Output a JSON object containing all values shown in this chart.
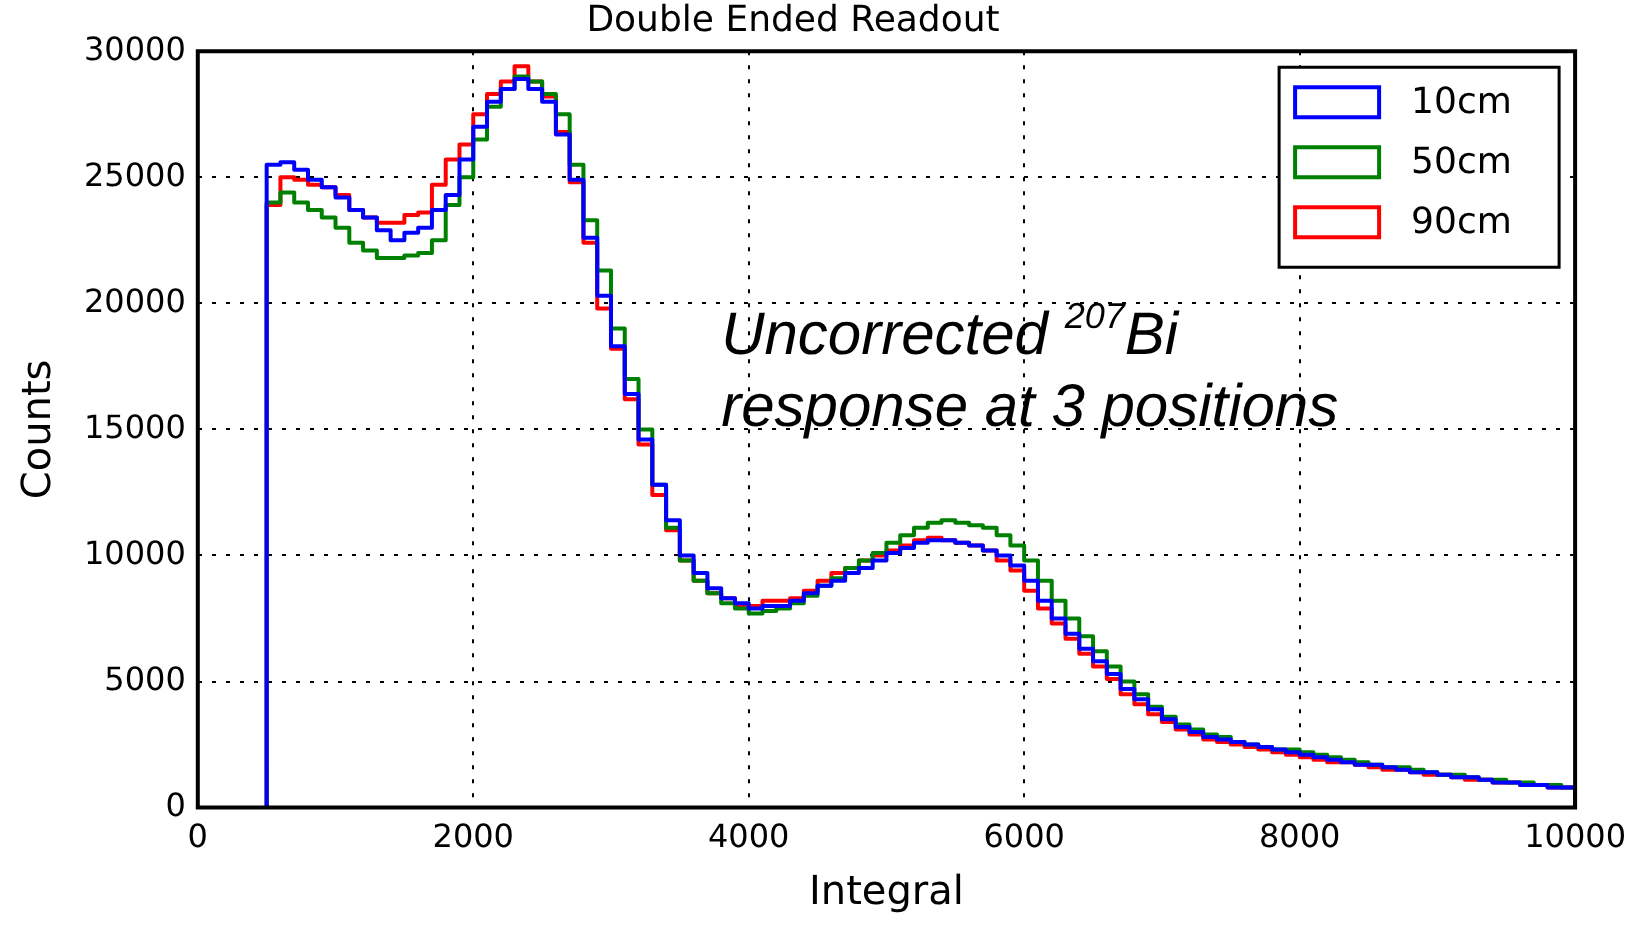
{
  "chart_data": {
    "type": "histogram",
    "title": "Double Ended Readout",
    "xlabel": "Integral",
    "ylabel": "Counts",
    "annotations": [
      "Uncorrected $^{207}$Bi\nresponse at 3 positions"
    ],
    "bins": [
      500,
      600,
      700,
      800,
      900,
      1000,
      1100,
      1200,
      1300,
      1400,
      1500,
      1600,
      1700,
      1800,
      1900,
      2000,
      2100,
      2200,
      2300,
      2400,
      2500,
      2600,
      2700,
      2800,
      2900,
      3000,
      3100,
      3200,
      3300,
      3400,
      3500,
      3600,
      3700,
      3800,
      3900,
      4000,
      4100,
      4200,
      4300,
      4400,
      4500,
      4600,
      4700,
      4800,
      4900,
      5000,
      5100,
      5200,
      5300,
      5400,
      5500,
      5600,
      5700,
      5800,
      5900,
      6000,
      6100,
      6200,
      6300,
      6400,
      6500,
      6600,
      6700,
      6800,
      6900,
      7000,
      7100,
      7200,
      7300,
      7400,
      7500,
      7600,
      7700,
      7800,
      7900,
      8000,
      8100,
      8200,
      8300,
      8400,
      8500,
      8600,
      8700,
      8800,
      8900,
      9000,
      9100,
      9200,
      9300,
      9400,
      9500,
      9600,
      9700,
      9800,
      9900,
      10000
    ],
    "series": [
      {
        "name": "10cm",
        "color": "#0000ff",
        "values": [
          25500,
          25600,
          25300,
          24900,
          24600,
          24200,
          23700,
          23400,
          22900,
          22500,
          22800,
          23000,
          23700,
          24300,
          25700,
          27000,
          28000,
          28500,
          28900,
          28500,
          28000,
          26700,
          24900,
          22600,
          20300,
          18300,
          16400,
          14600,
          12800,
          11400,
          10000,
          9300,
          8700,
          8300,
          8100,
          7900,
          8000,
          8000,
          8200,
          8500,
          8800,
          9000,
          9300,
          9500,
          9800,
          10100,
          10300,
          10500,
          10600,
          10600,
          10500,
          10400,
          10200,
          10000,
          9600,
          9000,
          8200,
          7500,
          6900,
          6300,
          5800,
          5300,
          4700,
          4300,
          3900,
          3500,
          3200,
          3000,
          2800,
          2700,
          2600,
          2500,
          2400,
          2300,
          2200,
          2100,
          2000,
          1900,
          1800,
          1700,
          1700,
          1600,
          1500,
          1400,
          1400,
          1300,
          1200,
          1200,
          1100,
          1000,
          1000,
          900,
          900,
          800,
          800
        ]
      },
      {
        "name": "50cm",
        "color": "#008000",
        "values": [
          24000,
          24400,
          24000,
          23700,
          23400,
          23000,
          22400,
          22100,
          21800,
          21800,
          21900,
          22000,
          22500,
          23900,
          25000,
          26500,
          27800,
          28500,
          29000,
          28800,
          28300,
          27500,
          25500,
          23300,
          21300,
          19000,
          17000,
          15000,
          12800,
          11100,
          9800,
          9000,
          8500,
          8100,
          7900,
          7700,
          7800,
          7900,
          8100,
          8400,
          8800,
          9100,
          9500,
          9800,
          10100,
          10500,
          10800,
          11100,
          11300,
          11400,
          11300,
          11200,
          11100,
          10800,
          10400,
          9800,
          9000,
          8200,
          7500,
          6800,
          6200,
          5600,
          5000,
          4500,
          4000,
          3600,
          3300,
          3100,
          2900,
          2800,
          2600,
          2500,
          2400,
          2300,
          2300,
          2200,
          2100,
          2000,
          1900,
          1800,
          1700,
          1600,
          1600,
          1500,
          1400,
          1300,
          1300,
          1200,
          1100,
          1100,
          1000,
          1000,
          900,
          900,
          800
        ]
      },
      {
        "name": "90cm",
        "color": "#ff0000",
        "values": [
          23900,
          25000,
          24900,
          24700,
          24600,
          24300,
          23700,
          23400,
          23200,
          23200,
          23500,
          23600,
          24700,
          25700,
          26300,
          27500,
          28300,
          28800,
          29400,
          28800,
          28200,
          26800,
          24800,
          22400,
          19800,
          18200,
          16200,
          14400,
          12400,
          11000,
          9800,
          9000,
          8500,
          8300,
          8000,
          8000,
          8200,
          8200,
          8300,
          8600,
          9000,
          9300,
          9500,
          9800,
          10000,
          10200,
          10400,
          10600,
          10700,
          10600,
          10500,
          10400,
          10200,
          9800,
          9400,
          8600,
          7900,
          7300,
          6700,
          6100,
          5600,
          5100,
          4500,
          4100,
          3700,
          3400,
          3100,
          2900,
          2700,
          2600,
          2500,
          2400,
          2300,
          2200,
          2100,
          2000,
          1900,
          1800,
          1800,
          1700,
          1600,
          1500,
          1500,
          1400,
          1300,
          1300,
          1200,
          1100,
          1100,
          1000,
          1000,
          900,
          900,
          800,
          800
        ]
      }
    ],
    "xlim": [
      0,
      10000
    ],
    "xticks": [
      0,
      2000,
      4000,
      6000,
      8000,
      10000
    ],
    "ylim": [
      0,
      30000
    ],
    "yticks": [
      0,
      5000,
      10000,
      15000,
      20000,
      25000,
      30000
    ],
    "grid": true,
    "legend": "top right"
  }
}
